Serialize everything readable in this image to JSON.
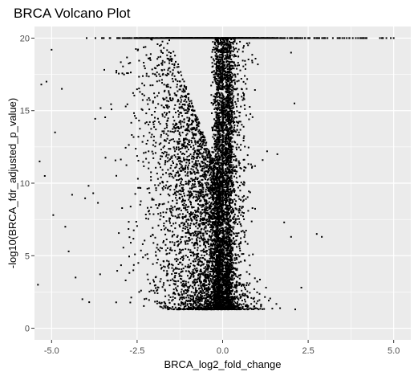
{
  "chart_data": {
    "type": "scatter",
    "title": "BRCA Volcano Plot",
    "xlabel": "BRCA_log2_fold_change",
    "ylabel": "-log10(BRCA_fdr_adjusted_p_value)",
    "xlim": [
      -5.5,
      5.5
    ],
    "ylim": [
      -0.8,
      20.8
    ],
    "x_ticks": [
      -5.0,
      -2.5,
      0.0,
      2.5,
      5.0
    ],
    "x_tick_labels": [
      "-5.0",
      "-2.5",
      "0.0",
      "2.5",
      "5.0"
    ],
    "y_ticks": [
      0,
      5,
      10,
      15,
      20
    ],
    "y_tick_labels": [
      "0",
      "5",
      "10",
      "15",
      "20"
    ],
    "grid": true,
    "legend": "none",
    "y_cap": 20,
    "y_floor": 1.3,
    "point_color": "#000000",
    "panel_color": "#ebebeb",
    "grid_color": "#ffffff",
    "highlight_points": [
      {
        "x": -5.3,
        "y": 16.8
      },
      {
        "x": -5.15,
        "y": 17.0
      },
      {
        "x": -4.9,
        "y": 13.5
      },
      {
        "x": -4.7,
        "y": 16.5
      },
      {
        "x": -5.35,
        "y": 11.5
      },
      {
        "x": -5.2,
        "y": 10.5
      },
      {
        "x": -4.95,
        "y": 7.8
      },
      {
        "x": -5.4,
        "y": 3.0
      },
      {
        "x": -5.0,
        "y": 19.2
      },
      {
        "x": -4.4,
        "y": 9.2
      },
      {
        "x": -4.6,
        "y": 7.0
      },
      {
        "x": -4.5,
        "y": 5.3
      },
      {
        "x": -4.3,
        "y": 3.5
      },
      {
        "x": -4.1,
        "y": 2.0
      },
      {
        "x": -3.9,
        "y": 1.8
      },
      {
        "x": 1.6,
        "y": 12.0
      },
      {
        "x": 1.8,
        "y": 7.3
      },
      {
        "x": 2.0,
        "y": 19.0
      },
      {
        "x": 2.1,
        "y": 15.5
      },
      {
        "x": 2.3,
        "y": 2.8
      },
      {
        "x": 2.9,
        "y": 6.3
      },
      {
        "x": 2.75,
        "y": 6.5
      },
      {
        "x": 2.0,
        "y": 6.3
      },
      {
        "x": 1.3,
        "y": 12.2
      },
      {
        "x": 2.5,
        "y": 20.0
      },
      {
        "x": 3.0,
        "y": 20.0
      },
      {
        "x": 3.7,
        "y": 20.0
      },
      {
        "x": 4.6,
        "y": 20.0
      },
      {
        "x": 5.0,
        "y": 20.0
      },
      {
        "x": 4.1,
        "y": 20.0
      }
    ]
  }
}
